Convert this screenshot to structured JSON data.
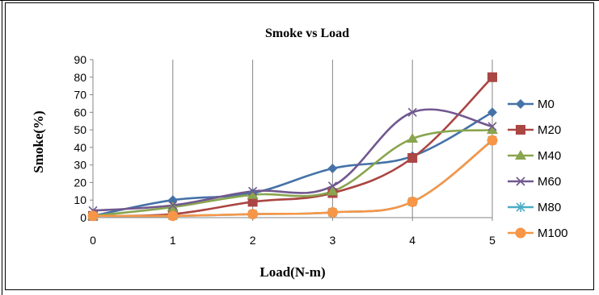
{
  "chart_data": {
    "type": "line",
    "title": "Smoke vs Load",
    "xlabel": "Load(N-m)",
    "ylabel": "Smoke(%)",
    "x": [
      0,
      1,
      2,
      3,
      4,
      5
    ],
    "xlim": [
      0,
      5
    ],
    "ylim": [
      0,
      90
    ],
    "yticks": [
      0,
      10,
      20,
      30,
      40,
      50,
      60,
      70,
      80,
      90
    ],
    "grid": "vertical",
    "legend_position": "right",
    "series": [
      {
        "name": "M0",
        "values": [
          1,
          10,
          14,
          28,
          35,
          60
        ],
        "color": "#4572A7",
        "marker": "diamond"
      },
      {
        "name": "M20",
        "values": [
          1,
          2,
          9,
          14,
          34,
          80
        ],
        "color": "#AA4643",
        "marker": "square"
      },
      {
        "name": "M40",
        "values": [
          1,
          6,
          13,
          15,
          45,
          50
        ],
        "color": "#89A54E",
        "marker": "triangle"
      },
      {
        "name": "M60",
        "values": [
          4,
          7,
          15,
          18,
          60,
          52
        ],
        "color": "#71588F",
        "marker": "x"
      },
      {
        "name": "M80",
        "values": [
          1,
          1,
          2,
          3,
          9,
          44
        ],
        "color": "#4BACC6",
        "marker": "star"
      },
      {
        "name": "M100",
        "values": [
          1,
          1,
          2,
          3,
          9,
          44
        ],
        "color": "#F79646",
        "marker": "circle"
      }
    ]
  }
}
